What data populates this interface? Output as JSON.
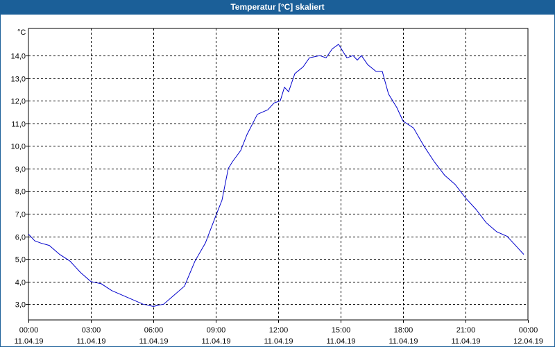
{
  "window": {
    "title": "Temperatur [°C] skaliert"
  },
  "colors": {
    "title_bar": "#1b5f98",
    "line": "#0000cc",
    "grid": "#000000"
  },
  "chart_data": {
    "type": "line",
    "title": "Temperatur [°C] skaliert",
    "ylabel": "°C",
    "ylim": [
      2.3,
      15.2
    ],
    "yticks": [
      "3,0",
      "4,0",
      "5,0",
      "6,0",
      "7,0",
      "8,0",
      "9,0",
      "10,0",
      "11,0",
      "12,0",
      "13,0",
      "14,0"
    ],
    "ytick_values": [
      3,
      4,
      5,
      6,
      7,
      8,
      9,
      10,
      11,
      12,
      13,
      14
    ],
    "xlim": [
      0,
      24
    ],
    "xticks": [
      {
        "time": "00:00",
        "date": "11.04.19",
        "h": 0
      },
      {
        "time": "03:00",
        "date": "11.04.19",
        "h": 3
      },
      {
        "time": "06:00",
        "date": "11.04.19",
        "h": 6
      },
      {
        "time": "09:00",
        "date": "11.04.19",
        "h": 9
      },
      {
        "time": "12:00",
        "date": "11.04.19",
        "h": 12
      },
      {
        "time": "15:00",
        "date": "11.04.19",
        "h": 15
      },
      {
        "time": "18:00",
        "date": "11.04.19",
        "h": 18
      },
      {
        "time": "21:00",
        "date": "11.04.19",
        "h": 21
      },
      {
        "time": "00:00",
        "date": "12.04.19",
        "h": 24
      }
    ],
    "grid": true,
    "series": [
      {
        "x": [
          0,
          0.3,
          0.6,
          1.0,
          1.5,
          2.0,
          2.5,
          3.0,
          3.5,
          4.0,
          4.5,
          5.0,
          5.5,
          6.0,
          6.5,
          7.0,
          7.5,
          8.0,
          8.5,
          9.0,
          9.3,
          9.6,
          9.8,
          10.2,
          10.5,
          11.0,
          11.5,
          11.8,
          12.1,
          12.3,
          12.5,
          12.8,
          13.2,
          13.5,
          14.0,
          14.3,
          14.6,
          14.9,
          15.1,
          15.3,
          15.6,
          15.8,
          16.0,
          16.3,
          16.7,
          17.0,
          17.3,
          17.7,
          18.0,
          18.5,
          19.0,
          19.5,
          20.0,
          20.5,
          21.0,
          21.5,
          22.0,
          22.5,
          23.0,
          23.5,
          23.8
        ],
        "y": [
          6.1,
          5.8,
          5.7,
          5.6,
          5.2,
          4.9,
          4.4,
          4.0,
          3.9,
          3.6,
          3.4,
          3.2,
          3.0,
          2.9,
          3.0,
          3.4,
          3.8,
          4.9,
          5.7,
          6.9,
          7.6,
          9.0,
          9.3,
          9.8,
          10.5,
          11.4,
          11.6,
          11.9,
          12.0,
          12.6,
          12.4,
          13.2,
          13.5,
          13.9,
          14.0,
          13.9,
          14.3,
          14.5,
          14.2,
          13.9,
          14.0,
          13.8,
          14.0,
          13.6,
          13.3,
          13.3,
          12.3,
          11.7,
          11.1,
          10.8,
          10.0,
          9.3,
          8.7,
          8.3,
          7.7,
          7.2,
          6.6,
          6.2,
          6.0,
          5.5,
          5.2
        ]
      }
    ]
  }
}
